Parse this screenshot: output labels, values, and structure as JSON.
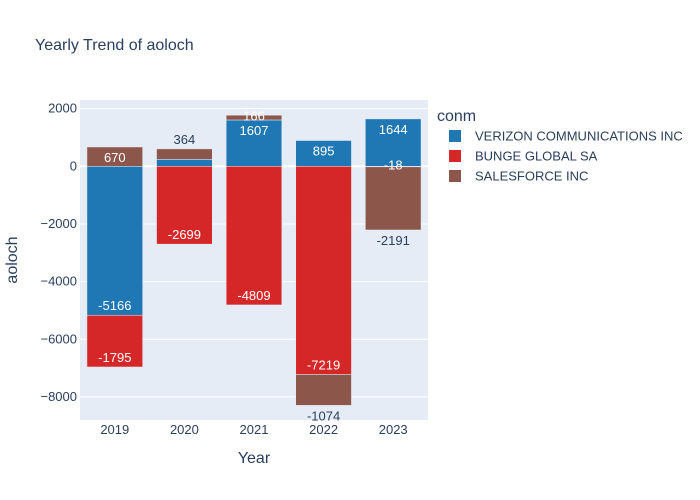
{
  "chart_data": {
    "type": "bar",
    "barmode": "relative",
    "title": "Yearly Trend of aoloch",
    "xlabel": "Year",
    "ylabel": "aoloch",
    "categories": [
      "2019",
      "2020",
      "2021",
      "2022",
      "2023"
    ],
    "ylim": [
      -8800,
      2300
    ],
    "yticks": [
      2000,
      0,
      -2000,
      -4000,
      -6000,
      -8000
    ],
    "ytick_labels": [
      "2000",
      "0",
      "−2000",
      "−4000",
      "−6000",
      "−8000"
    ],
    "legend_title": "conm",
    "legend_position": "right",
    "series": [
      {
        "name": "VERIZON COMMUNICATIONS INC",
        "color": "#1f77b4",
        "values": [
          -5166,
          240,
          1607,
          895,
          1644
        ],
        "labels": [
          "-5166",
          "",
          "1607",
          "895",
          "1644"
        ]
      },
      {
        "name": "BUNGE GLOBAL SA",
        "color": "#d62728",
        "values": [
          -1795,
          -2699,
          -4809,
          -7219,
          -18
        ],
        "labels": [
          "-1795",
          "-2699",
          "-4809",
          "-7219",
          "-18"
        ]
      },
      {
        "name": "SALESFORCE INC",
        "color": "#8c564b",
        "values": [
          670,
          364,
          166,
          -1074,
          -2191
        ],
        "labels": [
          "670",
          "364",
          "166",
          "-1074",
          "-2191"
        ]
      }
    ]
  }
}
